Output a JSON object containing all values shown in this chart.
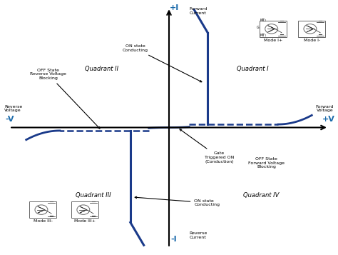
{
  "bg_color": "#ffffff",
  "curve_color": "#1a3a8a",
  "axis_color": "#000000",
  "text_color": "#000000",
  "blue_text_color": "#1a6aaa",
  "dashed_color": "#1a3a8a",
  "annotations": {
    "plus_I": "+I",
    "minus_I": "-I",
    "plus_V": "+V",
    "minus_V": "-V",
    "mode_I_plus": "Mode I+",
    "mode_I_minus": "Mode I-",
    "mode_III_minus": "Mode III-",
    "mode_III_plus": "Mode III+",
    "on_state_upper": "ON state\nConducting",
    "off_state_reverse": "OFF State\nReverse Voltage\nBlocking",
    "gate_triggered": "Gate\nTriggered ON\n(Conduction)",
    "on_state_lower": "ON state\nConducting",
    "off_state_forward": "OFF State\nForward Voltage\nBlocking",
    "quadrant_I": "Quadrant I",
    "quadrant_II": "Quadrant II",
    "quadrant_III": "Quadrant III",
    "quadrant_IV": "Quadrant IV",
    "forward_current": "Forward\nCurrent",
    "reverse_current": "Reverse\nCurrent",
    "forward_voltage": "Forward\nVoltage",
    "reverse_voltage": "Reverse\nVoltage"
  }
}
